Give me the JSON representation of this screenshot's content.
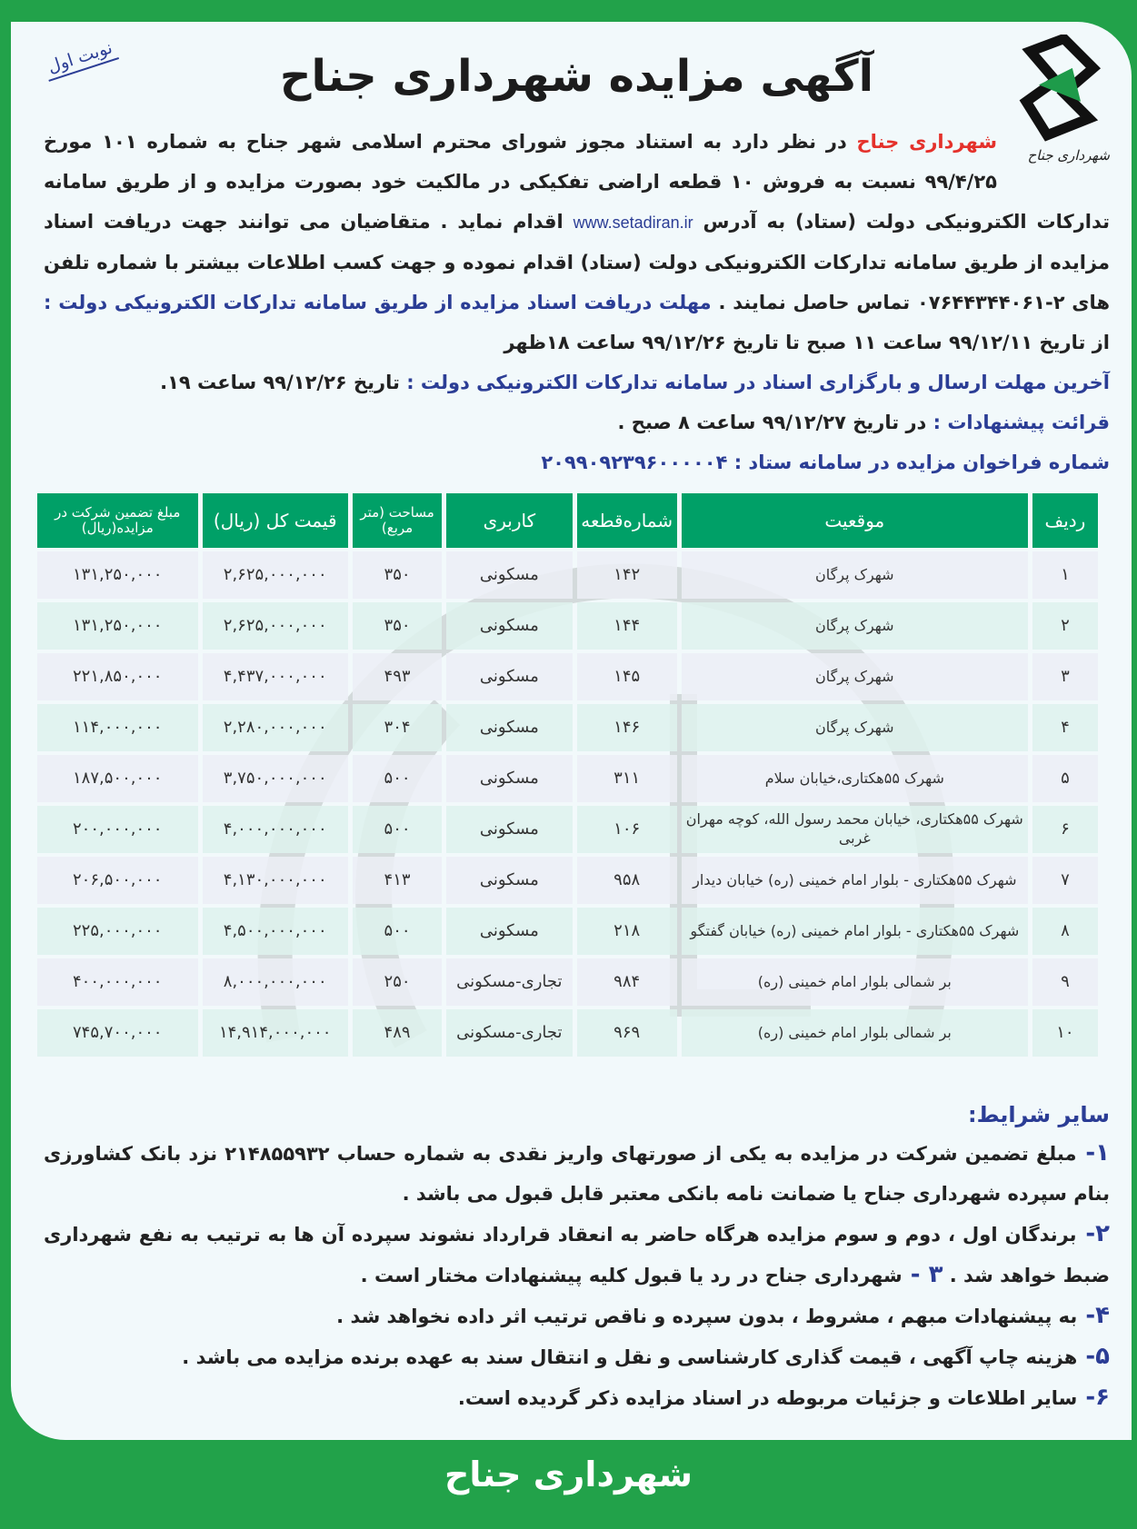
{
  "badge": "نوبت اول",
  "title": "آگهی مزایده شهرداری جناح",
  "logo_text": "شهرداری جناح",
  "intro": {
    "org": "شهرداری جناح",
    "text1": " در نظر دارد به استناد مجوز شورای محترم اسلامی شهر جناح به شماره ۱۰۱ مورخ ۹۹/۴/۲۵ نسبت به فروش ۱۰ قطعه اراضی تفکیکی در مالکیت خود بصورت مزایده و از طریق سامانه تدارکات الکترونیکی دولت (ستاد) به آدرس ",
    "url": "www.setadiran.ir",
    "text2": " اقدام نماید . متقاضیان می توانند جهت دریافت اسناد مزایده از طریق سامانه تدارکات الکترونیکی دولت (ستاد) اقدام نموده و جهت کسب اطلاعات بیشتر با شماره تلفن های ۲-۰۷۶۴۴۳۴۴۰۶۱ تماس حاصل نمایند . ",
    "deadline_label": "مهلت دریافت اسناد مزایده از طریق سامانه تدارکات الکترونیکی دولت : ",
    "deadline_text": "از تاریخ ۹۹/۱۲/۱۱ ساعت ۱۱ صبح تا تاریخ ۹۹/۱۲/۲۶ ساعت ۱۸ظهر",
    "submit_label": "آخرین مهلت ارسال و بارگزاری اسناد در سامانه تدارکات الکترونیکی دولت : ",
    "submit_text": "تاریخ ۹۹/۱۲/۲۶ ساعت ۱۹.",
    "opening_label": "قرائت پیشنهادات : ",
    "opening_text": "در تاریخ ۹۹/۱۲/۲۷ ساعت ۸ صبح .",
    "call_label": "شماره فراخوان مزایده در سامانه ستاد : ",
    "call_number": "۲۰۹۹۰۹۲۳۹۶۰۰۰۰۰۴"
  },
  "table": {
    "headers": [
      "ردیف",
      "موقعیت",
      "شماره‌قطعه",
      "کاربری",
      "مساحت (متر مربع)",
      "قیمت کل (ریال)",
      "مبلغ تضمین شرکت در مزایده(ریال)"
    ],
    "rows": [
      [
        "۱",
        "شهرک پرگان",
        "۱۴۲",
        "مسکونی",
        "۳۵۰",
        "۲,۶۲۵,۰۰۰,۰۰۰",
        "۱۳۱,۲۵۰,۰۰۰"
      ],
      [
        "۲",
        "شهرک پرگان",
        "۱۴۴",
        "مسکونی",
        "۳۵۰",
        "۲,۶۲۵,۰۰۰,۰۰۰",
        "۱۳۱,۲۵۰,۰۰۰"
      ],
      [
        "۳",
        "شهرک پرگان",
        "۱۴۵",
        "مسکونی",
        "۴۹۳",
        "۴,۴۳۷,۰۰۰,۰۰۰",
        "۲۲۱,۸۵۰,۰۰۰"
      ],
      [
        "۴",
        "شهرک پرگان",
        "۱۴۶",
        "مسکونی",
        "۳۰۴",
        "۲,۲۸۰,۰۰۰,۰۰۰",
        "۱۱۴,۰۰۰,۰۰۰"
      ],
      [
        "۵",
        "شهرک ۵۵هکتاری،خیابان سلام",
        "۳۱۱",
        "مسکونی",
        "۵۰۰",
        "۳,۷۵۰,۰۰۰,۰۰۰",
        "۱۸۷,۵۰۰,۰۰۰"
      ],
      [
        "۶",
        "شهرک ۵۵هکتاری، خیابان محمد رسول الله، کوچه مهران غربی",
        "۱۰۶",
        "مسکونی",
        "۵۰۰",
        "۴,۰۰۰,۰۰۰,۰۰۰",
        "۲۰۰,۰۰۰,۰۰۰"
      ],
      [
        "۷",
        "شهرک ۵۵هکتاری - بلوار امام خمینی (ره) خیابان دیدار",
        "۹۵۸",
        "مسکونی",
        "۴۱۳",
        "۴,۱۳۰,۰۰۰,۰۰۰",
        "۲۰۶,۵۰۰,۰۰۰"
      ],
      [
        "۸",
        "شهرک ۵۵هکتاری - بلوار امام خمینی (ره) خیابان گفتگو",
        "۲۱۸",
        "مسکونی",
        "۵۰۰",
        "۴,۵۰۰,۰۰۰,۰۰۰",
        "۲۲۵,۰۰۰,۰۰۰"
      ],
      [
        "۹",
        "بر شمالی بلوار امام خمینی (ره)",
        "۹۸۴",
        "تجاری-مسکونی",
        "۲۵۰",
        "۸,۰۰۰,۰۰۰,۰۰۰",
        "۴۰۰,۰۰۰,۰۰۰"
      ],
      [
        "۱۰",
        "بر شمالی بلوار امام خمینی (ره)",
        "۹۶۹",
        "تجاری-مسکونی",
        "۴۸۹",
        "۱۴,۹۱۴,۰۰۰,۰۰۰",
        "۷۴۵,۷۰۰,۰۰۰"
      ]
    ]
  },
  "conditions": {
    "heading": "سایر شرایط:",
    "items": [
      {
        "num": "۱- ",
        "text": "مبلغ تضمین شرکت در مزایده به یکی از صورتهای واریز نقدی به شماره حساب ۲۱۴۸۵۵۹۳۲ نزد بانک کشاورزی بنام سپرده شهرداری جناح یا ضمانت نامه بانکی معتبر قابل قبول می باشد ."
      },
      {
        "num": "۲- ",
        "text": "برندگان اول ، دوم و سوم مزایده هرگاه حاضر به انعقاد قرارداد نشوند سپرده آن ها به ترتیب به نفع شهرداری ضبط خواهد شد . ",
        "num2": "۳ - ",
        "text2": "شهرداری جناح در رد یا قبول کلیه پیشنهادات مختار است ."
      },
      {
        "num": "۴- ",
        "text": "به پیشنهادات مبهم ، مشروط ، بدون سپرده و ناقص ترتیب اثر داده نخواهد شد ."
      },
      {
        "num": "۵- ",
        "text": "هزینه چاپ آگهی ، قیمت گذاری کارشناسی و نقل و انتقال سند به عهده برنده مزایده می باشد ."
      },
      {
        "num": "۶- ",
        "text": "سایر اطلاعات و جزئیات مربوطه در اسناد مزایده ذکر گردیده است."
      }
    ]
  },
  "footer": "شهرداری جناح",
  "colors": {
    "frame": "#22a24a",
    "header": "#00a067",
    "accent_blue": "#2b3d95",
    "accent_red": "#e4312b"
  }
}
